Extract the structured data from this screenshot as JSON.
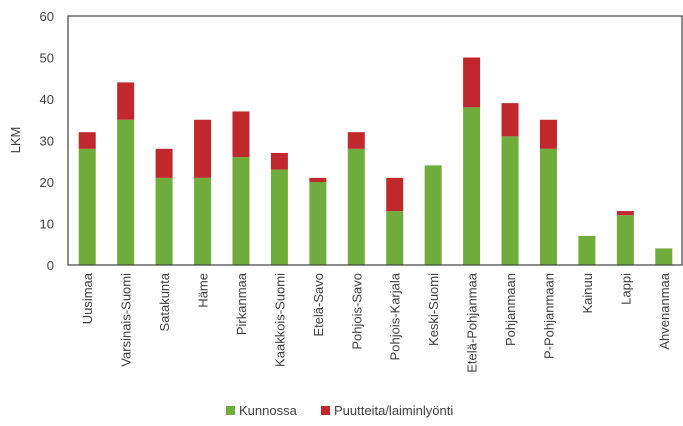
{
  "chart_data": {
    "type": "bar",
    "stacked": true,
    "categories": [
      "Uusimaa",
      "Varsinais-Suomi",
      "Satakunta",
      "Häme",
      "Pirkanmaa",
      "Kaakkois-Suomi",
      "Etelä-Savo",
      "Pohjois-Savo",
      "Pohjois-Karjala",
      "Keski-Suomi",
      "Etelä-Pohjanmaa",
      "Pohjanmaan",
      "P-Pohjanmaan",
      "Kainuu",
      "Lappi",
      "Ahvenanmaa"
    ],
    "series": [
      {
        "name": "Kunnossa",
        "color": "#6fac3c",
        "values": [
          28,
          35,
          21,
          21,
          26,
          23,
          20,
          28,
          13,
          24,
          38,
          31,
          28,
          7,
          12,
          4
        ]
      },
      {
        "name": "Puutteita/laiminlyönti",
        "color": "#c0282e",
        "values": [
          4,
          9,
          7,
          14,
          11,
          4,
          1,
          4,
          8,
          0,
          12,
          8,
          7,
          0,
          1,
          0
        ]
      }
    ],
    "xlabel": "",
    "ylabel": "LKM",
    "ylim": [
      0,
      60
    ],
    "yticks": [
      0,
      10,
      20,
      30,
      40,
      50,
      60
    ],
    "grid": false,
    "legend": "bottom"
  }
}
